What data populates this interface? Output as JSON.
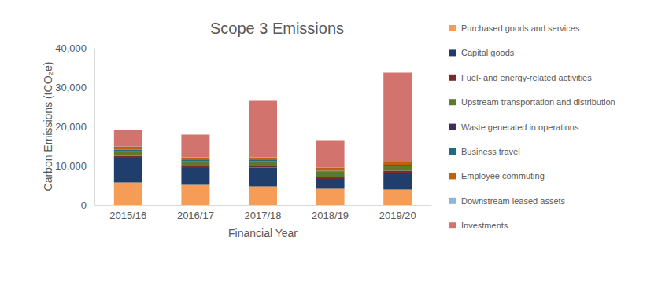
{
  "chart_data": {
    "type": "bar",
    "stacked": true,
    "title": "Scope 3 Emissions",
    "x_label": "Financial Year",
    "y_label": "Carbon Emissions (tCO₂e)",
    "categories": [
      "2015/16",
      "2016/17",
      "2017/18",
      "2018/19",
      "2019/20"
    ],
    "ylim": [
      0,
      40000
    ],
    "yticks": [
      0,
      {
        "value": 10000,
        "label": "10,000"
      },
      {
        "value": 20000,
        "label": "20,000"
      },
      {
        "value": 30000,
        "label": "30,000"
      },
      {
        "value": 40000,
        "label": "40,000"
      }
    ],
    "grid": false,
    "legend": "right",
    "series": [
      {
        "name": "Purchased goods and services",
        "color": "#f59d56",
        "values": [
          5700,
          5100,
          4700,
          4100,
          3900
        ]
      },
      {
        "name": "Capital goods",
        "color": "#1f3e6b",
        "values": [
          6300,
          4300,
          4800,
          2500,
          4300
        ]
      },
      {
        "name": "Fuel- and energy-related activities",
        "color": "#7a2a2c",
        "values": [
          500,
          500,
          500,
          400,
          500
        ]
      },
      {
        "name": "Upstream transportation and distribution",
        "color": "#5d7a2c",
        "values": [
          1200,
          1100,
          1000,
          1400,
          1200
        ]
      },
      {
        "name": "Waste generated in operations",
        "color": "#3f2d5c",
        "values": [
          100,
          100,
          100,
          100,
          100
        ]
      },
      {
        "name": "Business travel",
        "color": "#1e6c7e",
        "values": [
          300,
          300,
          300,
          200,
          200
        ]
      },
      {
        "name": "Employee commuting",
        "color": "#c0600f",
        "values": [
          700,
          700,
          700,
          700,
          600
        ]
      },
      {
        "name": "Downstream leased assets",
        "color": "#8db4d9",
        "values": [
          50,
          50,
          50,
          50,
          50
        ]
      },
      {
        "name": "Investments",
        "color": "#d3736e",
        "values": [
          4250,
          5750,
          14350,
          7050,
          22850
        ]
      }
    ]
  }
}
